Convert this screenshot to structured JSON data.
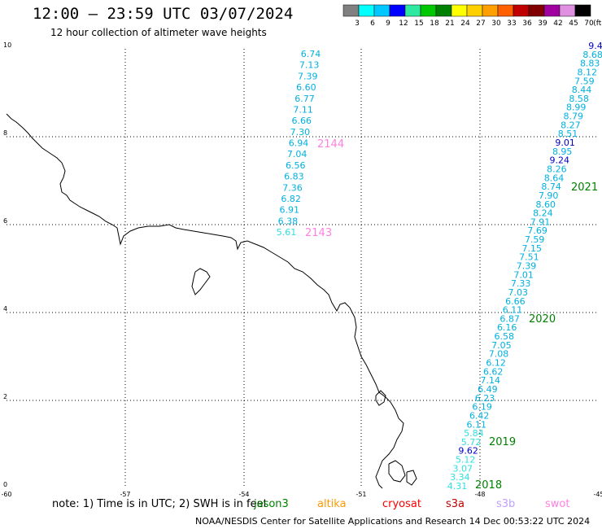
{
  "title": "12:00 – 23:59 UTC 03/07/2024",
  "subtitle": "12 hour collection of altimeter wave heights",
  "colorbar": {
    "ticks": [
      "3",
      "6",
      "9",
      "12",
      "15",
      "18",
      "21",
      "24",
      "27",
      "30",
      "33",
      "36",
      "39",
      "42",
      "45",
      "70"
    ],
    "unit": "(ft)",
    "colors": [
      "#808080",
      "#00ffff",
      "#00c8ff",
      "#0000ff",
      "#30e8a0",
      "#00c800",
      "#008000",
      "#ffff00",
      "#ffd000",
      "#ffa000",
      "#ff6000",
      "#c00000",
      "#800000",
      "#a000a0",
      "#e090e0",
      "#000000"
    ]
  },
  "axes": {
    "x_ticks": [
      "-60",
      "-57",
      "-54",
      "-51",
      "-48",
      "-45"
    ],
    "y_ticks": [
      "0",
      "2",
      "4",
      "6",
      "8",
      "10"
    ]
  },
  "tracks": {
    "track_2143_2144": [
      {
        "v": "6.74",
        "c": "#00b0e0"
      },
      {
        "v": "7.13",
        "c": "#00b0e0"
      },
      {
        "v": "7.39",
        "c": "#00b0e0"
      },
      {
        "v": "6.60",
        "c": "#00b0e0"
      },
      {
        "v": "6.77",
        "c": "#00b0e0"
      },
      {
        "v": "7.11",
        "c": "#00b0e0"
      },
      {
        "v": "6.66",
        "c": "#00b0e0"
      },
      {
        "v": "7.30",
        "c": "#00b0e0"
      },
      {
        "v": "6.94",
        "c": "#00b0e0"
      },
      {
        "v": "7.04",
        "c": "#00b0e0"
      },
      {
        "v": "6.56",
        "c": "#00b0e0"
      },
      {
        "v": "6.83",
        "c": "#00b0e0"
      },
      {
        "v": "7.36",
        "c": "#00b0e0"
      },
      {
        "v": "6.82",
        "c": "#00b0e0"
      },
      {
        "v": "6.91",
        "c": "#00b0e0"
      },
      {
        "v": "6.38",
        "c": "#00b0e0"
      },
      {
        "v": "5.61",
        "c": "#30e0e0"
      }
    ],
    "track_2018_2021": [
      {
        "v": "9.4",
        "c": "#0000c8"
      },
      {
        "v": "8.68",
        "c": "#00b0e0"
      },
      {
        "v": "8.83",
        "c": "#00b0e0"
      },
      {
        "v": "8.12",
        "c": "#00b0e0"
      },
      {
        "v": "7.59",
        "c": "#00b0e0"
      },
      {
        "v": "8.44",
        "c": "#00b0e0"
      },
      {
        "v": "8.58",
        "c": "#00b0e0"
      },
      {
        "v": "8.99",
        "c": "#00b0e0"
      },
      {
        "v": "8.79",
        "c": "#00b0e0"
      },
      {
        "v": "8.27",
        "c": "#00b0e0"
      },
      {
        "v": "8.51",
        "c": "#00b0e0"
      },
      {
        "v": "9.01",
        "c": "#0000c8"
      },
      {
        "v": "8.95",
        "c": "#00b0e0"
      },
      {
        "v": "9.24",
        "c": "#0000c8"
      },
      {
        "v": "8.26",
        "c": "#00b0e0"
      },
      {
        "v": "8.64",
        "c": "#00b0e0"
      },
      {
        "v": "8.74",
        "c": "#00b0e0"
      },
      {
        "v": "7.90",
        "c": "#00b0e0"
      },
      {
        "v": "8.60",
        "c": "#00b0e0"
      },
      {
        "v": "8.24",
        "c": "#00b0e0"
      },
      {
        "v": "7.91",
        "c": "#00b0e0"
      },
      {
        "v": "7.69",
        "c": "#00b0e0"
      },
      {
        "v": "7.59",
        "c": "#00b0e0"
      },
      {
        "v": "7.15",
        "c": "#00b0e0"
      },
      {
        "v": "7.51",
        "c": "#00b0e0"
      },
      {
        "v": "7.39",
        "c": "#00b0e0"
      },
      {
        "v": "7.01",
        "c": "#00b0e0"
      },
      {
        "v": "7.33",
        "c": "#00b0e0"
      },
      {
        "v": "7.03",
        "c": "#00b0e0"
      },
      {
        "v": "6.66",
        "c": "#00b0e0"
      },
      {
        "v": "6.11",
        "c": "#00b0e0"
      },
      {
        "v": "6.87",
        "c": "#00b0e0"
      },
      {
        "v": "6.16",
        "c": "#00b0e0"
      },
      {
        "v": "6.58",
        "c": "#00b0e0"
      },
      {
        "v": "7.05",
        "c": "#00b0e0"
      },
      {
        "v": "7.08",
        "c": "#00b0e0"
      },
      {
        "v": "6.12",
        "c": "#00b0e0"
      },
      {
        "v": "6.62",
        "c": "#00b0e0"
      },
      {
        "v": "7.14",
        "c": "#00b0e0"
      },
      {
        "v": "6.49",
        "c": "#00b0e0"
      },
      {
        "v": "6.23",
        "c": "#00b0e0"
      },
      {
        "v": "6.19",
        "c": "#00b0e0"
      },
      {
        "v": "6.42",
        "c": "#00b0e0"
      },
      {
        "v": "6.11",
        "c": "#00b0e0"
      },
      {
        "v": "5.84",
        "c": "#30e0e0"
      },
      {
        "v": "5.72",
        "c": "#30e0e0"
      },
      {
        "v": "9.62",
        "c": "#0000c8"
      },
      {
        "v": "5.12",
        "c": "#30e0e0"
      },
      {
        "v": "3.07",
        "c": "#30e0e0"
      },
      {
        "v": "3.34",
        "c": "#30e0e0"
      },
      {
        "v": "4.31",
        "c": "#30e0e0"
      }
    ]
  },
  "time_labels": [
    {
      "text": "2144",
      "color": "#ff80e0"
    },
    {
      "text": "2143",
      "color": "#ff80e0"
    },
    {
      "text": "2021",
      "color": "#008000"
    },
    {
      "text": "2020",
      "color": "#008000"
    },
    {
      "text": "2019",
      "color": "#008000"
    },
    {
      "text": "2018",
      "color": "#008000"
    }
  ],
  "note": "note:  1) Time is in UTC; 2) SWH is in feet",
  "satellites": [
    {
      "name": "jason3",
      "color": "#008000"
    },
    {
      "name": "altika",
      "color": "#ff9900"
    },
    {
      "name": "cryosat",
      "color": "#ff0000"
    },
    {
      "name": "s3a",
      "color": "#c00000"
    },
    {
      "name": "s3b",
      "color": "#c0a0ff"
    },
    {
      "name": "swot",
      "color": "#ff80e0"
    }
  ],
  "footer": "NOAA/NESDIS Center for Satellite Applications and Research     14 Dec 00:53:22 UTC 2024"
}
